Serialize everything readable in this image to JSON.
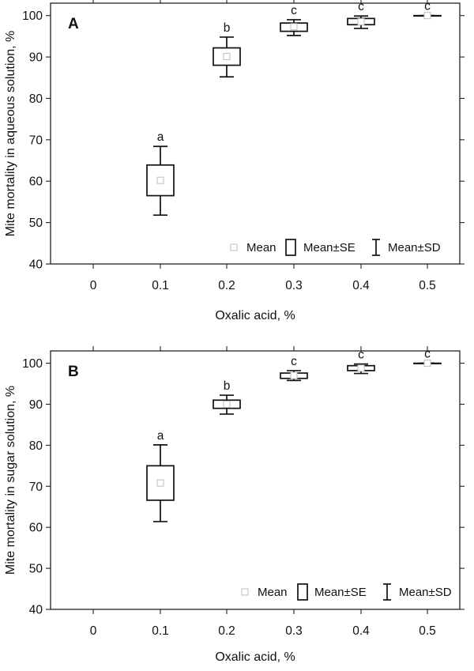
{
  "chart_data": [
    {
      "type": "box",
      "panel_label": "A",
      "xlabel": "Oxalic acid, %",
      "ylabel": "Mite mortality in aqueous solution, %",
      "ylim": [
        40,
        103
      ],
      "yticks": [
        "40",
        "50",
        "60",
        "70",
        "80",
        "90",
        "100"
      ],
      "categories": [
        "0",
        "0.1",
        "0.2",
        "0.3",
        "0.4",
        "0.5"
      ],
      "series": [
        {
          "mean": [
            null,
            60.2,
            90.1,
            97.3,
            98.5,
            100
          ],
          "se_low": [
            null,
            56.5,
            88.0,
            96.2,
            97.8,
            100
          ],
          "se_high": [
            null,
            63.9,
            92.2,
            98.2,
            99.3,
            100
          ],
          "sd_low": [
            null,
            51.8,
            85.2,
            95.2,
            96.9,
            100
          ],
          "sd_high": [
            null,
            68.4,
            94.8,
            99.0,
            99.9,
            100
          ],
          "letters": [
            null,
            "a",
            "b",
            "c",
            "c",
            "c"
          ]
        }
      ],
      "legend": {
        "mean": "Mean",
        "se": "Mean±SE",
        "sd": "Mean±SD",
        "position": "bottom-right"
      },
      "grid": false
    },
    {
      "type": "box",
      "panel_label": "B",
      "xlabel": "Oxalic acid, %",
      "ylabel": "Mite mortality in sugar solution, %",
      "ylim": [
        40,
        103
      ],
      "yticks": [
        "40",
        "50",
        "60",
        "70",
        "80",
        "90",
        "100"
      ],
      "categories": [
        "0",
        "0.1",
        "0.2",
        "0.3",
        "0.4",
        "0.5"
      ],
      "series": [
        {
          "mean": [
            null,
            70.8,
            90.0,
            97.0,
            98.8,
            100
          ],
          "se_low": [
            null,
            66.6,
            89.0,
            96.3,
            98.2,
            100
          ],
          "se_high": [
            null,
            75.0,
            91.0,
            97.6,
            99.4,
            100
          ],
          "sd_low": [
            null,
            61.4,
            87.6,
            95.8,
            97.5,
            100
          ],
          "sd_high": [
            null,
            80.1,
            92.2,
            98.2,
            99.8,
            100
          ],
          "letters": [
            null,
            "a",
            "b",
            "c",
            "c",
            "c"
          ]
        }
      ],
      "legend": {
        "mean": "Mean",
        "se": "Mean±SE",
        "sd": "Mean±SD",
        "position": "bottom-right"
      },
      "grid": false
    }
  ]
}
